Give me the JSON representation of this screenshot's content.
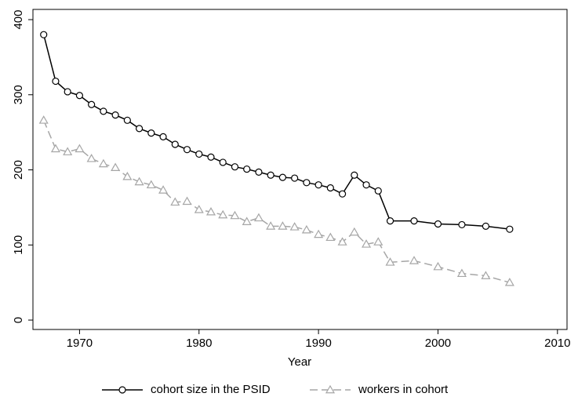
{
  "chart_data": {
    "type": "line",
    "x_label": "Year",
    "x": [
      1967,
      1968,
      1969,
      1970,
      1971,
      1972,
      1973,
      1974,
      1975,
      1976,
      1977,
      1978,
      1979,
      1980,
      1981,
      1982,
      1983,
      1984,
      1985,
      1986,
      1987,
      1988,
      1989,
      1990,
      1991,
      1992,
      1993,
      1994,
      1995,
      1996,
      1998,
      2000,
      2002,
      2004,
      2006
    ],
    "series": [
      {
        "name": "cohort size in the PSID",
        "color": "#000000",
        "marker": "circle",
        "dashed": false,
        "values": [
          380,
          318,
          304,
          299,
          287,
          278,
          273,
          266,
          255,
          249,
          244,
          234,
          227,
          221,
          217,
          210,
          204,
          201,
          197,
          193,
          190,
          189,
          183,
          180,
          176,
          168,
          193,
          180,
          172,
          132,
          132,
          128,
          127,
          125,
          121
        ]
      },
      {
        "name": "workers in cohort",
        "color": "#a6a6a6",
        "marker": "triangle",
        "dashed": true,
        "values": [
          266,
          228,
          224,
          228,
          215,
          208,
          203,
          191,
          184,
          180,
          173,
          157,
          158,
          147,
          144,
          140,
          139,
          131,
          136,
          125,
          125,
          124,
          120,
          114,
          110,
          104,
          117,
          101,
          104,
          77,
          79,
          71,
          62,
          59,
          50
        ]
      }
    ],
    "xlim": [
      1966.1,
      2010.8
    ],
    "xticks": [
      1970,
      1980,
      1990,
      2000,
      2010
    ],
    "ylim": [
      -12.5,
      413.6
    ],
    "yticks": [
      0,
      100,
      200,
      300,
      400
    ],
    "grid": false,
    "legend": "bottom"
  }
}
